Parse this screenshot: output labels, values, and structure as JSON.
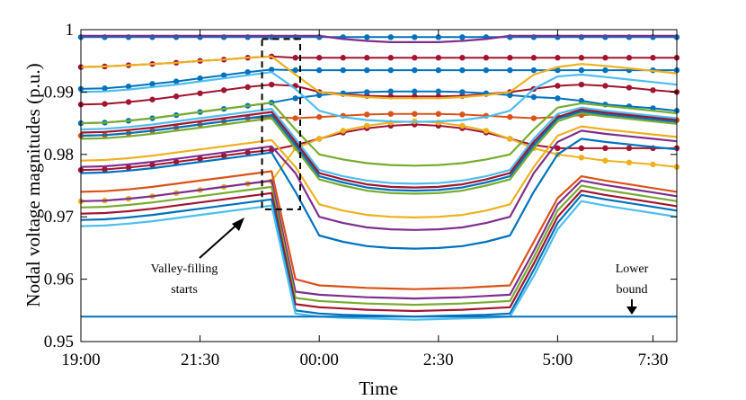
{
  "chart_data": {
    "type": "line",
    "title": "",
    "xlabel": "Time",
    "ylabel": "Nodal voltage magnitudes (p.u.)",
    "xlim": [
      0,
      25
    ],
    "ylim": [
      0.95,
      1.0
    ],
    "x_tick_values": [
      0,
      5,
      10,
      15,
      20,
      24
    ],
    "x_tick_labels": [
      "19:00",
      "21:30",
      "00:00",
      "2:30",
      "5:00",
      "7:30"
    ],
    "y_tick_values": [
      0.95,
      0.96,
      0.97,
      0.98,
      0.99,
      1.0
    ],
    "y_tick_labels": [
      "0.95",
      "0.96",
      "0.97",
      "0.98",
      "0.99",
      "1"
    ],
    "x_time_index": [
      0,
      1,
      2,
      3,
      4,
      5,
      6,
      7,
      8,
      9,
      10,
      11,
      12,
      13,
      14,
      15,
      16,
      17,
      18,
      19,
      20,
      21,
      22,
      23,
      24,
      25
    ],
    "grid": false,
    "lower_bound": {
      "name": "Lower bound",
      "value": 0.954
    },
    "annotations": [
      {
        "name": "valley-filling",
        "line1": "Valley-filling",
        "line2": "starts",
        "x_range": [
          7.6,
          9.2
        ],
        "y_range": [
          0.9712,
          0.9985
        ]
      },
      {
        "name": "lower-bound",
        "line1": "Lower",
        "line2": "bound",
        "x": 22.5,
        "y": 0.954
      }
    ],
    "series": [
      {
        "name": "node-01",
        "color": "#0072BD",
        "marker": true,
        "values": [
          0.9988,
          0.9988,
          0.9988,
          0.9988,
          0.9988,
          0.9988,
          0.9988,
          0.9988,
          0.9988,
          0.9988,
          0.9988,
          0.9988,
          0.9988,
          0.9988,
          0.9988,
          0.9988,
          0.9988,
          0.9988,
          0.9988,
          0.9988,
          0.9988,
          0.9988,
          0.9988,
          0.9988,
          0.9988,
          0.9988
        ]
      },
      {
        "name": "node-02",
        "color": "#A2142F",
        "marker": true,
        "values": [
          0.994,
          0.9941,
          0.9943,
          0.9945,
          0.9947,
          0.995,
          0.9952,
          0.9955,
          0.9957,
          0.9955,
          0.9955,
          0.9955,
          0.9955,
          0.9955,
          0.9955,
          0.9955,
          0.9955,
          0.9955,
          0.9955,
          0.9955,
          0.9955,
          0.9955,
          0.9955,
          0.9955,
          0.9955,
          0.9955
        ]
      },
      {
        "name": "node-03",
        "color": "#0072BD",
        "marker": true,
        "values": [
          0.9905,
          0.9906,
          0.9909,
          0.9913,
          0.9917,
          0.9922,
          0.9927,
          0.9932,
          0.9936,
          0.9935,
          0.9935,
          0.9935,
          0.9935,
          0.9935,
          0.9935,
          0.9935,
          0.9935,
          0.9935,
          0.9935,
          0.9935,
          0.9935,
          0.9935,
          0.9935,
          0.9935,
          0.9935,
          0.9935
        ]
      },
      {
        "name": "node-04",
        "color": "#A2142F",
        "marker": true,
        "values": [
          0.988,
          0.9881,
          0.9884,
          0.9888,
          0.9893,
          0.9898,
          0.9903,
          0.9908,
          0.9912,
          0.991,
          0.99,
          0.9897,
          0.9894,
          0.9893,
          0.9893,
          0.9893,
          0.9894,
          0.9897,
          0.99,
          0.9905,
          0.991,
          0.9912,
          0.991,
          0.9907,
          0.9903,
          0.99
        ]
      },
      {
        "name": "node-05",
        "color": "#0072BD",
        "marker": true,
        "values": [
          0.985,
          0.9851,
          0.9854,
          0.9858,
          0.9863,
          0.9868,
          0.9873,
          0.9878,
          0.9883,
          0.989,
          0.9895,
          0.9898,
          0.99,
          0.9901,
          0.9901,
          0.9901,
          0.99,
          0.9898,
          0.9895,
          0.9892,
          0.989,
          0.9886,
          0.988,
          0.9877,
          0.9874,
          0.987
        ]
      },
      {
        "name": "node-06",
        "color": "#D95319",
        "marker": true,
        "values": [
          0.983,
          0.9831,
          0.9834,
          0.9838,
          0.9843,
          0.9848,
          0.9853,
          0.9858,
          0.986,
          0.9858,
          0.986,
          0.9862,
          0.9864,
          0.9865,
          0.9865,
          0.9865,
          0.9864,
          0.9862,
          0.986,
          0.9858,
          0.986,
          0.9863,
          0.9865,
          0.9862,
          0.9858,
          0.9855
        ]
      },
      {
        "name": "node-07",
        "color": "#A2142F",
        "marker": true,
        "values": [
          0.9775,
          0.9776,
          0.9779,
          0.9783,
          0.9788,
          0.9793,
          0.9798,
          0.9803,
          0.9807,
          0.9815,
          0.9825,
          0.9835,
          0.9842,
          0.9846,
          0.9848,
          0.9846,
          0.9842,
          0.9835,
          0.9825,
          0.9815,
          0.981,
          0.981,
          0.981,
          0.981,
          0.981,
          0.981
        ]
      },
      {
        "name": "node-08",
        "color": "#EDB120",
        "marker": true,
        "values": [
          0.9725,
          0.9726,
          0.9729,
          0.9733,
          0.9738,
          0.9743,
          0.9748,
          0.9753,
          0.9757,
          0.981,
          0.9825,
          0.9838,
          0.9846,
          0.9851,
          0.9853,
          0.9851,
          0.9846,
          0.9838,
          0.9825,
          0.981,
          0.98,
          0.9795,
          0.979,
          0.9787,
          0.9784,
          0.978
        ]
      },
      {
        "name": "node-09",
        "color": "#7E2F8E",
        "marker": false,
        "values": [
          0.999,
          0.999,
          0.999,
          0.999,
          0.999,
          0.999,
          0.999,
          0.999,
          0.999,
          0.999,
          0.999,
          0.9985,
          0.9982,
          0.998,
          0.998,
          0.998,
          0.9982,
          0.9985,
          0.999,
          0.999,
          0.999,
          0.999,
          0.999,
          0.999,
          0.999,
          0.999
        ]
      },
      {
        "name": "node-10",
        "color": "#EDB120",
        "marker": false,
        "values": [
          0.994,
          0.9941,
          0.9943,
          0.9945,
          0.9947,
          0.995,
          0.9952,
          0.9955,
          0.9957,
          0.9928,
          0.99,
          0.9895,
          0.9892,
          0.989,
          0.989,
          0.989,
          0.9892,
          0.9895,
          0.99,
          0.9928,
          0.994,
          0.9945,
          0.9942,
          0.9938,
          0.9934,
          0.993
        ]
      },
      {
        "name": "node-11",
        "color": "#4DBEEE",
        "marker": false,
        "values": [
          0.99,
          0.9901,
          0.9904,
          0.9908,
          0.9912,
          0.9917,
          0.9922,
          0.9927,
          0.9932,
          0.9905,
          0.987,
          0.986,
          0.9855,
          0.9853,
          0.9852,
          0.9853,
          0.9855,
          0.986,
          0.987,
          0.9905,
          0.9925,
          0.9928,
          0.9924,
          0.992,
          0.9916,
          0.9912
        ]
      },
      {
        "name": "node-12",
        "color": "#77AC30",
        "marker": false,
        "values": [
          0.985,
          0.9851,
          0.9854,
          0.9858,
          0.9863,
          0.9868,
          0.9873,
          0.9878,
          0.9883,
          0.984,
          0.98,
          0.9792,
          0.9786,
          0.9783,
          0.9782,
          0.9783,
          0.9786,
          0.9792,
          0.98,
          0.984,
          0.9875,
          0.9882,
          0.9878,
          0.9874,
          0.987,
          0.9866
        ]
      },
      {
        "name": "node-13",
        "color": "#4DBEEE",
        "marker": false,
        "values": [
          0.984,
          0.9841,
          0.9844,
          0.9848,
          0.9853,
          0.9858,
          0.9863,
          0.9868,
          0.9873,
          0.9825,
          0.9775,
          0.9765,
          0.9758,
          0.9754,
          0.9753,
          0.9754,
          0.9758,
          0.9765,
          0.9775,
          0.9825,
          0.9865,
          0.9875,
          0.987,
          0.9866,
          0.9862,
          0.9858
        ]
      },
      {
        "name": "node-14",
        "color": "#A2142F",
        "marker": false,
        "values": [
          0.9835,
          0.9836,
          0.9839,
          0.9843,
          0.9848,
          0.9853,
          0.9858,
          0.9863,
          0.9868,
          0.982,
          0.977,
          0.976,
          0.9752,
          0.9748,
          0.9747,
          0.9748,
          0.9752,
          0.976,
          0.977,
          0.982,
          0.986,
          0.9872,
          0.9867,
          0.9863,
          0.9859,
          0.9855
        ]
      },
      {
        "name": "node-15",
        "color": "#0072BD",
        "marker": false,
        "values": [
          0.983,
          0.9831,
          0.9834,
          0.9838,
          0.9843,
          0.9848,
          0.9853,
          0.9858,
          0.9863,
          0.9815,
          0.9765,
          0.9755,
          0.9747,
          0.9743,
          0.9742,
          0.9743,
          0.9747,
          0.9755,
          0.9765,
          0.9815,
          0.9857,
          0.9869,
          0.9864,
          0.986,
          0.9856,
          0.9852
        ]
      },
      {
        "name": "node-16",
        "color": "#77AC30",
        "marker": false,
        "values": [
          0.9825,
          0.9826,
          0.9829,
          0.9833,
          0.9838,
          0.9843,
          0.9848,
          0.9853,
          0.9858,
          0.981,
          0.976,
          0.975,
          0.9742,
          0.9738,
          0.9737,
          0.9738,
          0.9742,
          0.975,
          0.976,
          0.981,
          0.9853,
          0.9866,
          0.9861,
          0.9857,
          0.9853,
          0.9849
        ]
      },
      {
        "name": "node-17",
        "color": "#EDB120",
        "marker": false,
        "values": [
          0.979,
          0.9791,
          0.9794,
          0.9798,
          0.9803,
          0.9808,
          0.9813,
          0.9818,
          0.9823,
          0.978,
          0.972,
          0.971,
          0.9703,
          0.97,
          0.9699,
          0.97,
          0.9703,
          0.971,
          0.972,
          0.978,
          0.983,
          0.9845,
          0.984,
          0.9836,
          0.9832,
          0.9828
        ]
      },
      {
        "name": "node-18",
        "color": "#7E2F8E",
        "marker": false,
        "values": [
          0.978,
          0.9781,
          0.9784,
          0.9788,
          0.9793,
          0.9798,
          0.9803,
          0.9808,
          0.9813,
          0.977,
          0.97,
          0.969,
          0.9683,
          0.968,
          0.9679,
          0.968,
          0.9683,
          0.969,
          0.97,
          0.977,
          0.982,
          0.9838,
          0.9833,
          0.9829,
          0.9825,
          0.9821
        ]
      },
      {
        "name": "node-19",
        "color": "#0072BD",
        "marker": false,
        "values": [
          0.977,
          0.9771,
          0.9774,
          0.9778,
          0.9783,
          0.9788,
          0.9793,
          0.9798,
          0.9803,
          0.974,
          0.967,
          0.966,
          0.9653,
          0.965,
          0.9649,
          0.965,
          0.9653,
          0.966,
          0.967,
          0.974,
          0.98,
          0.9825,
          0.982,
          0.9816,
          0.9812,
          0.9808
        ]
      },
      {
        "name": "node-20",
        "color": "#D95319",
        "marker": false,
        "values": [
          0.974,
          0.9741,
          0.9744,
          0.9748,
          0.9753,
          0.9758,
          0.9763,
          0.9768,
          0.9773,
          0.96,
          0.959,
          0.9588,
          0.9586,
          0.9585,
          0.9584,
          0.9585,
          0.9586,
          0.9588,
          0.959,
          0.966,
          0.973,
          0.9765,
          0.9758,
          0.9752,
          0.9746,
          0.974
        ]
      },
      {
        "name": "node-21",
        "color": "#7E2F8E",
        "marker": false,
        "values": [
          0.9725,
          0.9726,
          0.9729,
          0.9733,
          0.9738,
          0.9743,
          0.9748,
          0.9753,
          0.9758,
          0.958,
          0.9575,
          0.9573,
          0.9571,
          0.957,
          0.9569,
          0.957,
          0.9571,
          0.9573,
          0.9575,
          0.9645,
          0.972,
          0.9758,
          0.9751,
          0.9745,
          0.9739,
          0.9733
        ]
      },
      {
        "name": "node-22",
        "color": "#77AC30",
        "marker": false,
        "values": [
          0.9715,
          0.9716,
          0.9719,
          0.9723,
          0.9728,
          0.9733,
          0.9738,
          0.9743,
          0.9748,
          0.957,
          0.9565,
          0.9563,
          0.9561,
          0.956,
          0.9559,
          0.956,
          0.9561,
          0.9563,
          0.9565,
          0.9635,
          0.971,
          0.975,
          0.9743,
          0.9737,
          0.9731,
          0.9725
        ]
      },
      {
        "name": "node-23",
        "color": "#A2142F",
        "marker": false,
        "values": [
          0.9705,
          0.9706,
          0.9709,
          0.9713,
          0.9718,
          0.9723,
          0.9728,
          0.9733,
          0.9738,
          0.956,
          0.9555,
          0.9553,
          0.9551,
          0.955,
          0.9549,
          0.955,
          0.9551,
          0.9553,
          0.9555,
          0.9625,
          0.97,
          0.9742,
          0.9735,
          0.9729,
          0.9723,
          0.9717
        ]
      },
      {
        "name": "node-24",
        "color": "#0072BD",
        "marker": false,
        "values": [
          0.9695,
          0.9696,
          0.9699,
          0.9703,
          0.9708,
          0.9713,
          0.9718,
          0.9723,
          0.9728,
          0.955,
          0.9545,
          0.9543,
          0.9542,
          0.9541,
          0.954,
          0.9541,
          0.9542,
          0.9543,
          0.9545,
          0.9615,
          0.969,
          0.9735,
          0.9728,
          0.9722,
          0.9716,
          0.971
        ]
      },
      {
        "name": "node-25",
        "color": "#4DBEEE",
        "marker": false,
        "values": [
          0.9685,
          0.9686,
          0.9689,
          0.9693,
          0.9698,
          0.9703,
          0.9708,
          0.9713,
          0.9718,
          0.9545,
          0.954,
          0.9538,
          0.9537,
          0.9536,
          0.9535,
          0.9536,
          0.9537,
          0.9538,
          0.954,
          0.9605,
          0.968,
          0.9725,
          0.9718,
          0.9712,
          0.9706,
          0.97
        ]
      }
    ]
  }
}
